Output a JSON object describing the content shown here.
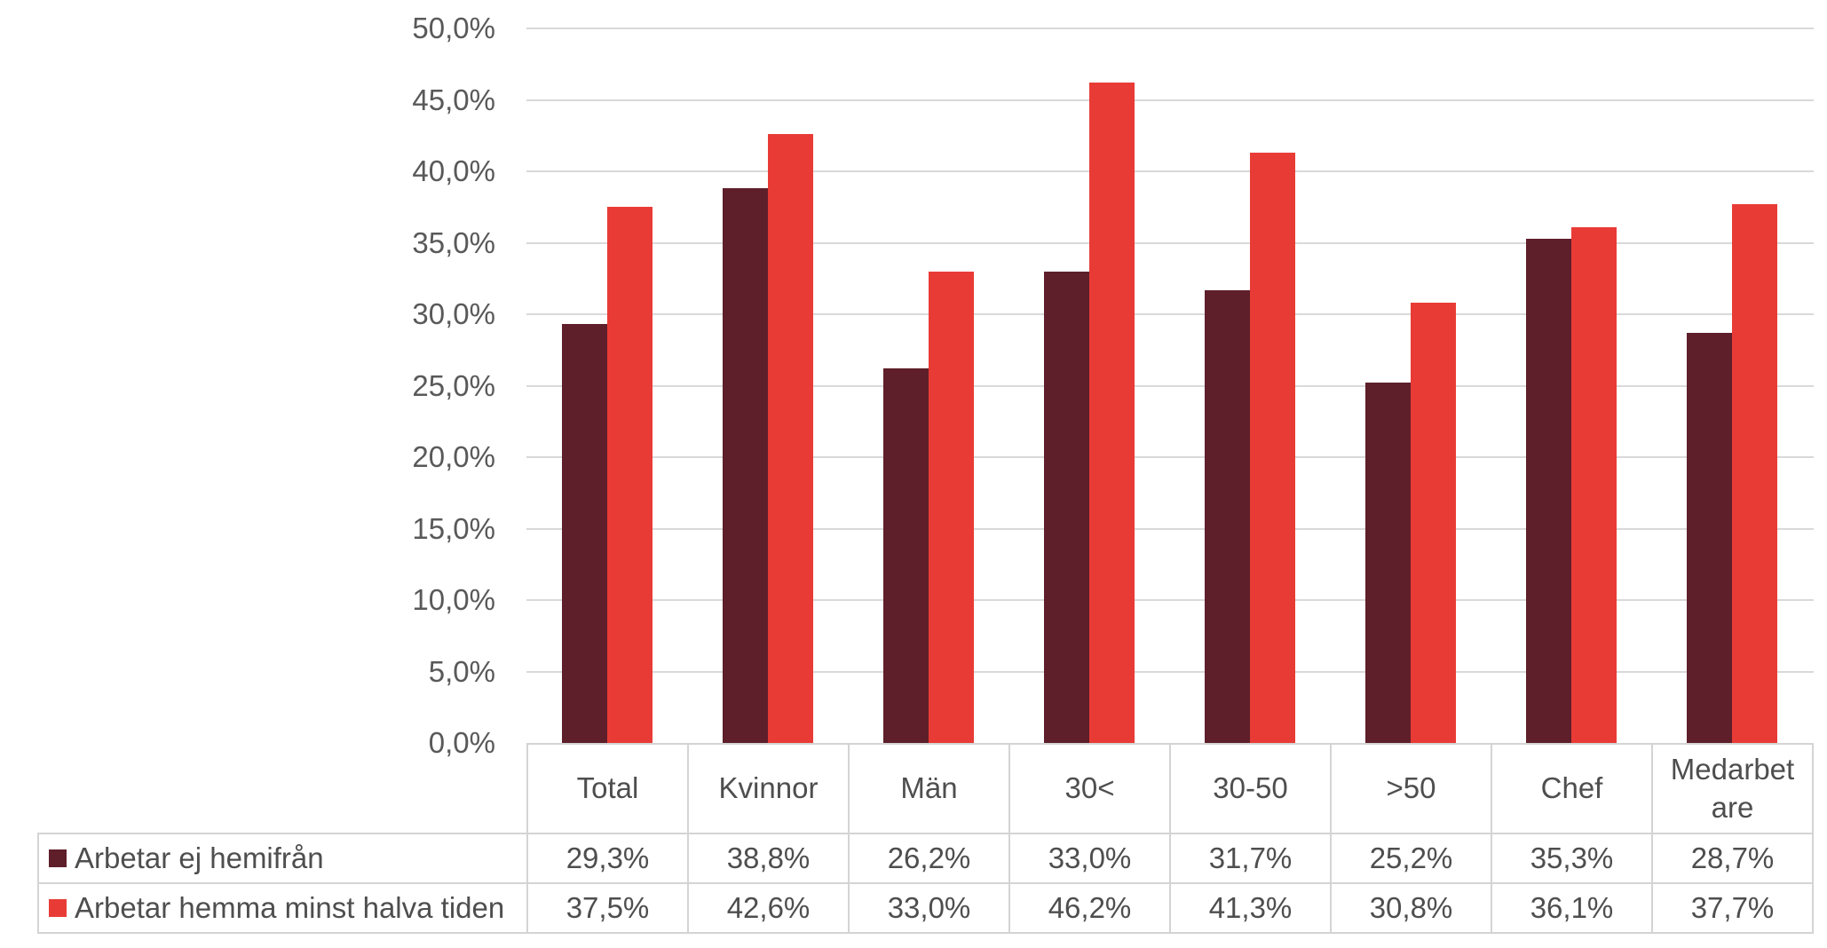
{
  "chart_data": {
    "type": "bar",
    "title": "",
    "categories": [
      "Total",
      "Kvinnor",
      "Män",
      "30<",
      "30-50",
      ">50",
      "Chef",
      "Medarbetare"
    ],
    "series": [
      {
        "name": "Arbetar ej hemifrån",
        "color": "#5E1F2A",
        "values": [
          29.3,
          38.8,
          26.2,
          33.0,
          31.7,
          25.2,
          35.3,
          28.7
        ],
        "display": [
          "29,3%",
          "38,8%",
          "26,2%",
          "33,0%",
          "31,7%",
          "25,2%",
          "35,3%",
          "28,7%"
        ]
      },
      {
        "name": "Arbetar hemma minst halva tiden",
        "color": "#E93B36",
        "values": [
          37.5,
          42.6,
          33.0,
          46.2,
          41.3,
          30.8,
          36.1,
          37.7
        ],
        "display": [
          "37,5%",
          "42,6%",
          "33,0%",
          "46,2%",
          "41,3%",
          "30,8%",
          "36,1%",
          "37,7%"
        ]
      }
    ],
    "y_axis": {
      "min": 0,
      "max": 50,
      "step": 5,
      "tick_labels": [
        "0,0%",
        "5,0%",
        "10,0%",
        "15,0%",
        "20,0%",
        "25,0%",
        "30,0%",
        "35,0%",
        "40,0%",
        "45,0%",
        "50,0%"
      ]
    },
    "grid": true,
    "legend_position": "bottom-table-left",
    "styles": {
      "background": "#FFFFFF",
      "gridline_color": "#D9D9D9",
      "table_border_color": "#D4D4D4",
      "axis_text_color": "#595959",
      "table_text_color": "#4E4E4E"
    }
  }
}
